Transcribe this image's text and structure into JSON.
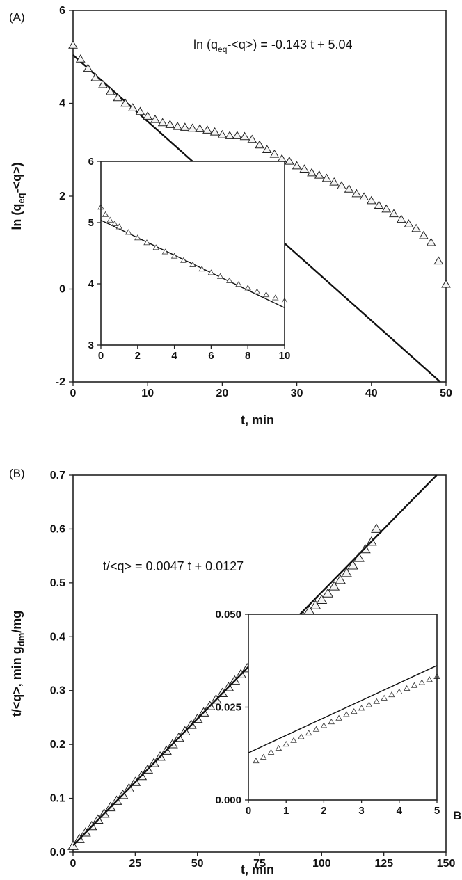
{
  "chart_data": [
    {
      "panel_label": "(A)",
      "type": "scatter",
      "xlabel": "t, min",
      "ylabel_parts": [
        "ln (q",
        "eq",
        "-<q>)"
      ],
      "xlim": [
        0,
        50
      ],
      "ylim": [
        -2,
        6
      ],
      "xticks": [
        0,
        10,
        20,
        30,
        40,
        50
      ],
      "yticks": [
        -2,
        0,
        2,
        4,
        6
      ],
      "equation_parts": [
        "ln (q",
        "eq",
        "-<q>) = -0.143 t + 5.04"
      ],
      "fit_line": {
        "slope": -0.143,
        "intercept": 5.04
      },
      "series": [
        {
          "marker": "triangle",
          "x": [
            0,
            1,
            2,
            3,
            4,
            5,
            6,
            7,
            8,
            9,
            10,
            11,
            12,
            13,
            14,
            15,
            16,
            17,
            18,
            19,
            20,
            21,
            22,
            23,
            24,
            25,
            26,
            27,
            28,
            29,
            30,
            31,
            32,
            33,
            34,
            35,
            36,
            37,
            38,
            39,
            40,
            41,
            42,
            43,
            44,
            45,
            46,
            47,
            48,
            49,
            50
          ],
          "y": [
            5.25,
            4.95,
            4.75,
            4.55,
            4.4,
            4.25,
            4.12,
            4.0,
            3.9,
            3.82,
            3.72,
            3.65,
            3.58,
            3.54,
            3.5,
            3.48,
            3.46,
            3.45,
            3.42,
            3.38,
            3.32,
            3.3,
            3.3,
            3.28,
            3.22,
            3.1,
            3.0,
            2.9,
            2.8,
            2.75,
            2.65,
            2.58,
            2.5,
            2.45,
            2.38,
            2.3,
            2.22,
            2.15,
            2.05,
            1.98,
            1.9,
            1.8,
            1.72,
            1.62,
            1.5,
            1.4,
            1.3,
            1.15,
            1.0,
            0.6,
            0.1
          ]
        }
      ],
      "inset": {
        "xlim": [
          0,
          10
        ],
        "ylim": [
          3,
          6
        ],
        "xticks": [
          0,
          2,
          4,
          6,
          8,
          10
        ],
        "yticks": [
          3,
          4,
          5,
          6
        ],
        "fit_line": {
          "slope": -0.143,
          "intercept": 5.04
        },
        "series": [
          {
            "marker": "triangle",
            "x": [
              0,
              0.25,
              0.5,
              0.75,
              1,
              1.5,
              2,
              2.5,
              3,
              3.5,
              4,
              4.5,
              5,
              5.5,
              6,
              6.5,
              7,
              7.5,
              8,
              8.5,
              9,
              9.5,
              10
            ],
            "y": [
              5.25,
              5.13,
              5.04,
              4.98,
              4.93,
              4.84,
              4.75,
              4.67,
              4.59,
              4.52,
              4.45,
              4.38,
              4.31,
              4.24,
              4.18,
              4.12,
              4.05,
              3.99,
              3.93,
              3.87,
              3.82,
              3.77,
              3.72
            ]
          }
        ]
      }
    },
    {
      "panel_label": "(B)",
      "type": "scatter",
      "xlabel": "t, min",
      "ylabel_parts": [
        "t/<q>, min g",
        "dm",
        "/mg"
      ],
      "xlim": [
        0,
        150
      ],
      "ylim": [
        0.0,
        0.7
      ],
      "xticks": [
        0,
        25,
        50,
        75,
        100,
        125,
        150
      ],
      "yticks": [
        0.0,
        0.1,
        0.2,
        0.3,
        0.4,
        0.5,
        0.6,
        0.7
      ],
      "ytick_labels": [
        "0.0",
        "0.1",
        "0.2",
        "0.3",
        "0.4",
        "0.5",
        "0.6",
        "0.7"
      ],
      "equation": "t/<q> = 0.0047 t + 0.0127",
      "fit_line": {
        "slope": 0.0047,
        "intercept": 0.0127
      },
      "series": [
        {
          "marker": "triangle",
          "x": [
            0,
            2.5,
            5,
            7.5,
            10,
            12.5,
            15,
            17.5,
            20,
            22.5,
            25,
            27.5,
            30,
            32.5,
            35,
            37.5,
            40,
            42.5,
            45,
            47.5,
            50,
            52.5,
            55,
            57.5,
            60,
            62.5,
            65,
            67.5,
            70,
            72.5,
            75,
            77.5,
            80,
            82.5,
            85,
            87.5,
            90,
            92.5,
            95,
            97.5,
            100,
            102.5,
            105,
            107.5,
            110,
            112.5,
            115,
            117.5,
            120,
            122
          ],
          "y": [
            0.011,
            0.024,
            0.036,
            0.048,
            0.06,
            0.071,
            0.083,
            0.095,
            0.106,
            0.118,
            0.13,
            0.141,
            0.153,
            0.165,
            0.177,
            0.188,
            0.2,
            0.212,
            0.224,
            0.236,
            0.247,
            0.259,
            0.271,
            0.283,
            0.295,
            0.306,
            0.318,
            0.33,
            0.341,
            0.353,
            0.365,
            0.376,
            0.387,
            0.397,
            0.408,
            0.418,
            0.428,
            0.438,
            0.448,
            0.458,
            0.468,
            0.48,
            0.493,
            0.505,
            0.518,
            0.532,
            0.546,
            0.562,
            0.576,
            0.6
          ]
        }
      ],
      "inset": {
        "xlim": [
          0,
          5
        ],
        "ylim": [
          0.0,
          0.05
        ],
        "xticks": [
          0,
          1,
          2,
          3,
          4,
          5
        ],
        "yticks": [
          0.0,
          0.025,
          0.05
        ],
        "ytick_labels": [
          "0.000",
          "0.025",
          "0.050"
        ],
        "fit_line": {
          "slope": 0.0047,
          "intercept": 0.0127
        },
        "series": [
          {
            "marker": "triangle",
            "x": [
              0.2,
              0.4,
              0.6,
              0.8,
              1.0,
              1.2,
              1.4,
              1.6,
              1.8,
              2.0,
              2.2,
              2.4,
              2.6,
              2.8,
              3.0,
              3.2,
              3.4,
              3.6,
              3.8,
              4.0,
              4.2,
              4.4,
              4.6,
              4.8,
              5.0
            ],
            "y": [
              0.0105,
              0.0115,
              0.0128,
              0.0139,
              0.015,
              0.016,
              0.017,
              0.018,
              0.019,
              0.02,
              0.021,
              0.022,
              0.023,
              0.0238,
              0.0247,
              0.0256,
              0.0265,
              0.0274,
              0.0283,
              0.0291,
              0.03,
              0.0308,
              0.0316,
              0.0324,
              0.0332
            ]
          }
        ]
      }
    }
  ],
  "page_label_fragment": "B"
}
